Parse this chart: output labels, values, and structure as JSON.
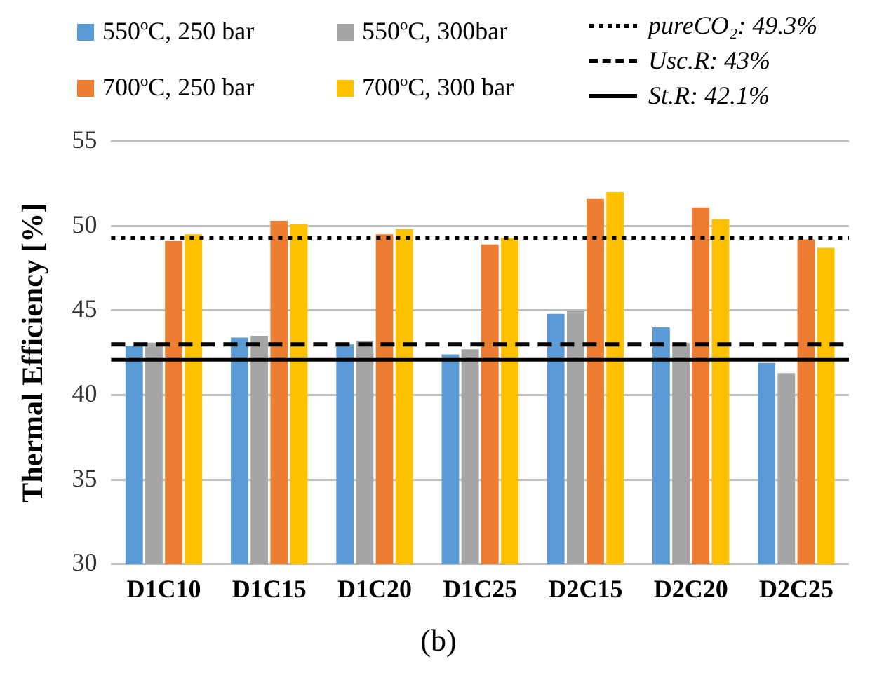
{
  "chart_data": {
    "type": "bar",
    "ylabel": "Thermal Efficiency [%]",
    "categories": [
      "D1C10",
      "D1C15",
      "D1C20",
      "D1C25",
      "D2C15",
      "D2C20",
      "D2C25"
    ],
    "series": [
      {
        "name": "550ºC, 250 bar",
        "color": "#5b9bd5",
        "values": [
          42.9,
          43.4,
          43.0,
          42.4,
          44.8,
          44.0,
          41.9
        ]
      },
      {
        "name": "550ºC, 300bar",
        "color": "#a5a5a5",
        "values": [
          43.1,
          43.5,
          43.2,
          42.7,
          45.0,
          43.1,
          41.3
        ]
      },
      {
        "name": "700ºC, 250 bar",
        "color": "#ed7d31",
        "values": [
          49.1,
          50.3,
          49.5,
          48.9,
          51.6,
          51.1,
          49.2
        ]
      },
      {
        "name": "700ºC, 300 bar",
        "color": "#ffc000",
        "values": [
          49.5,
          50.1,
          49.8,
          49.3,
          52.0,
          50.4,
          48.7
        ]
      }
    ],
    "ylim": [
      30,
      55
    ],
    "yticks": [
      30,
      35,
      40,
      45,
      50,
      55
    ],
    "grid": "y",
    "legend": "top",
    "ref_lines": [
      {
        "axis": "y",
        "value": 49.3,
        "label": "pureCO₂:  49.3%",
        "color": "#000000",
        "line_style": "dotted"
      },
      {
        "axis": "y",
        "value": 43,
        "label": "Usc.R:  43%",
        "color": "#000000",
        "line_style": "dashed"
      },
      {
        "axis": "y",
        "value": 42.1,
        "label": "St.R:  42.1%",
        "color": "#000000",
        "line_style": "solid"
      }
    ],
    "annotations": [
      "(b)"
    ]
  }
}
